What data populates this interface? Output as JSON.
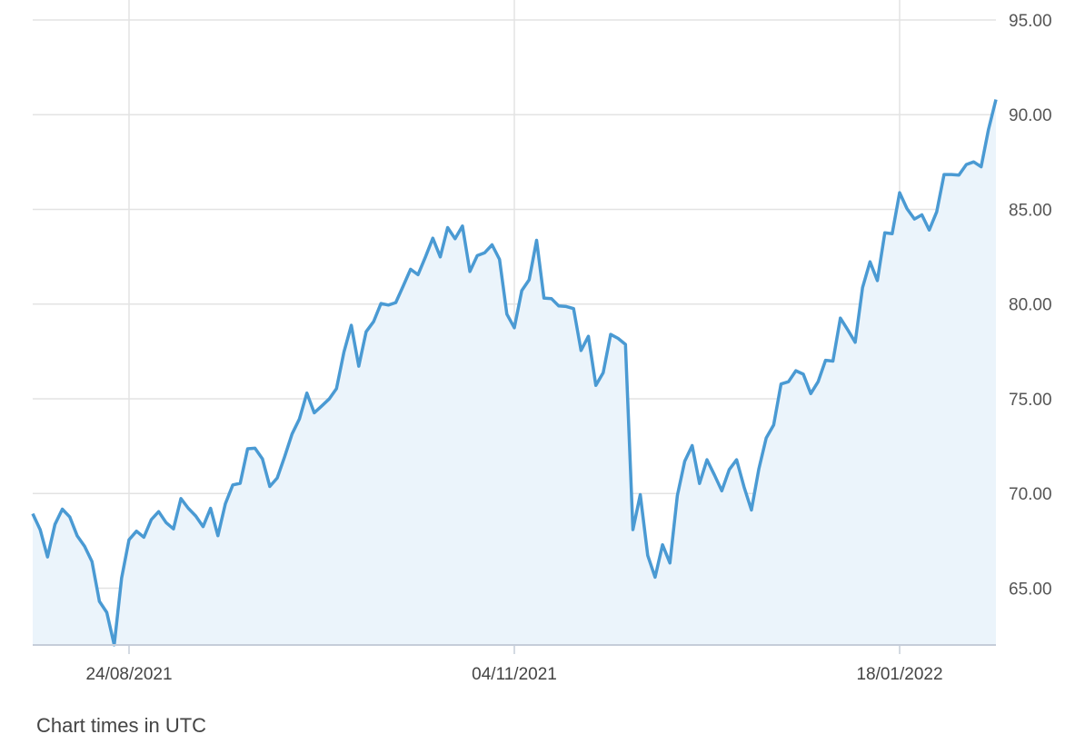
{
  "chart_data": {
    "type": "area",
    "title": "",
    "xlabel": "",
    "ylabel": "",
    "ylim": [
      62,
      95
    ],
    "y_ticks": [
      "65.00",
      "70.00",
      "75.00",
      "80.00",
      "85.00",
      "90.00",
      "95.00"
    ],
    "x_ticks": [
      {
        "date": "2021-08-24",
        "label": "24/08/2021"
      },
      {
        "date": "2021-11-04",
        "label": "04/11/2021"
      },
      {
        "date": "2022-01-18",
        "label": "18/01/2022"
      }
    ],
    "grid": true,
    "y_axis_position": "right",
    "colors": {
      "line": "#4a9ad3",
      "fill": "#ebf4fb",
      "grid": "#e3e3e3",
      "axis": "#c5cdd9"
    },
    "x": [
      "2021-08-05",
      "2021-08-06",
      "2021-08-09",
      "2021-08-10",
      "2021-08-11",
      "2021-08-12",
      "2021-08-13",
      "2021-08-16",
      "2021-08-17",
      "2021-08-18",
      "2021-08-19",
      "2021-08-20",
      "2021-08-23",
      "2021-08-24",
      "2021-08-25",
      "2021-08-26",
      "2021-08-27",
      "2021-08-30",
      "2021-08-31",
      "2021-09-01",
      "2021-09-02",
      "2021-09-03",
      "2021-09-06",
      "2021-09-07",
      "2021-09-08",
      "2021-09-09",
      "2021-09-10",
      "2021-09-13",
      "2021-09-14",
      "2021-09-15",
      "2021-09-16",
      "2021-09-17",
      "2021-09-20",
      "2021-09-21",
      "2021-09-22",
      "2021-09-23",
      "2021-09-24",
      "2021-09-27",
      "2021-09-28",
      "2021-09-29",
      "2021-09-30",
      "2021-10-01",
      "2021-10-04",
      "2021-10-05",
      "2021-10-06",
      "2021-10-07",
      "2021-10-08",
      "2021-10-11",
      "2021-10-12",
      "2021-10-13",
      "2021-10-14",
      "2021-10-15",
      "2021-10-18",
      "2021-10-19",
      "2021-10-20",
      "2021-10-21",
      "2021-10-22",
      "2021-10-25",
      "2021-10-26",
      "2021-10-27",
      "2021-10-28",
      "2021-10-29",
      "2021-11-01",
      "2021-11-02",
      "2021-11-03",
      "2021-11-04",
      "2021-11-05",
      "2021-11-08",
      "2021-11-09",
      "2021-11-10",
      "2021-11-11",
      "2021-11-12",
      "2021-11-15",
      "2021-11-16",
      "2021-11-17",
      "2021-11-18",
      "2021-11-19",
      "2021-11-22",
      "2021-11-23",
      "2021-11-24",
      "2021-11-25",
      "2021-11-26",
      "2021-11-29",
      "2021-11-30",
      "2021-12-01",
      "2021-12-02",
      "2021-12-03",
      "2021-12-06",
      "2021-12-07",
      "2021-12-08",
      "2021-12-09",
      "2021-12-10",
      "2021-12-13",
      "2021-12-14",
      "2021-12-15",
      "2021-12-16",
      "2021-12-17",
      "2021-12-20",
      "2021-12-21",
      "2021-12-22",
      "2021-12-23",
      "2021-12-24",
      "2021-12-28",
      "2021-12-29",
      "2021-12-30",
      "2021-12-31",
      "2022-01-03",
      "2022-01-04",
      "2022-01-05",
      "2022-01-06",
      "2022-01-07",
      "2022-01-10",
      "2022-01-11",
      "2022-01-12",
      "2022-01-13",
      "2022-01-14",
      "2022-01-17",
      "2022-01-18",
      "2022-01-19",
      "2022-01-20",
      "2022-01-21",
      "2022-01-24",
      "2022-01-25",
      "2022-01-26",
      "2022-01-27",
      "2022-01-28",
      "2022-01-31",
      "2022-02-01",
      "2022-02-02",
      "2022-02-03",
      "2022-02-04"
    ],
    "values": [
      68.93,
      68.09,
      66.65,
      68.37,
      69.17,
      68.76,
      67.77,
      67.21,
      66.41,
      64.3,
      63.72,
      62.01,
      65.53,
      67.56,
      68.01,
      67.69,
      68.62,
      69.04,
      68.46,
      68.13,
      69.73,
      69.22,
      68.81,
      68.25,
      69.22,
      67.77,
      69.46,
      70.45,
      70.54,
      72.36,
      72.39,
      71.83,
      70.37,
      70.82,
      71.94,
      73.14,
      73.94,
      75.3,
      74.26,
      74.62,
      74.99,
      75.54,
      77.47,
      78.88,
      76.72,
      78.54,
      79.07,
      80.03,
      79.95,
      80.08,
      80.95,
      81.84,
      81.55,
      82.49,
      83.48,
      82.49,
      84.04,
      83.45,
      84.12,
      81.72,
      82.56,
      82.71,
      83.13,
      82.36,
      79.47,
      78.75,
      80.71,
      81.28,
      83.37,
      80.32,
      80.29,
      79.9,
      79.87,
      79.76,
      77.55,
      78.3,
      75.71,
      76.38,
      78.4,
      78.19,
      77.87,
      68.09,
      69.94,
      66.73,
      65.58,
      67.29,
      66.33,
      69.89,
      71.7,
      72.53,
      70.53,
      71.78,
      70.98,
      70.14,
      71.26,
      71.78,
      70.34,
      69.13,
      71.3,
      72.93,
      73.62,
      75.78,
      75.9,
      76.48,
      76.3,
      75.27,
      75.9,
      77.03,
      76.99,
      79.26,
      78.64,
      77.98,
      80.87,
      82.23,
      81.24,
      83.76,
      83.72,
      85.88,
      85.03,
      84.49,
      84.71,
      83.91,
      84.87,
      86.84,
      86.84,
      86.81,
      87.37,
      87.51,
      87.25,
      89.22,
      90.8
    ]
  },
  "footnote": "Chart times in UTC"
}
